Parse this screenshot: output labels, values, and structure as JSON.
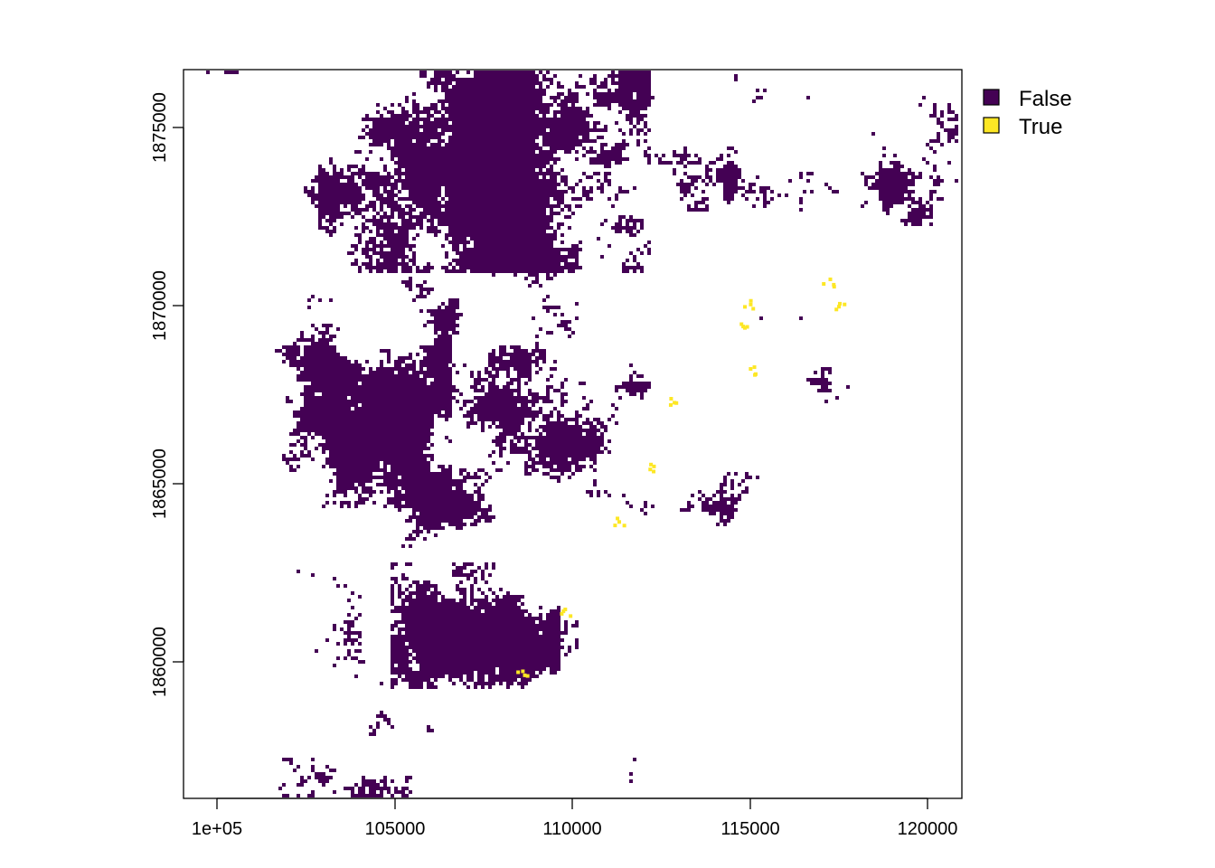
{
  "chart_data": {
    "type": "heatmap",
    "title": "",
    "xlabel": "",
    "ylabel": "",
    "xlim": [
      99050,
      120950
    ],
    "ylim": [
      1856200,
      1876650
    ],
    "x_ticks": [
      100000,
      105000,
      110000,
      115000,
      120000
    ],
    "x_tick_labels": [
      "1e+05",
      "105000",
      "110000",
      "115000",
      "120000"
    ],
    "y_ticks": [
      1860000,
      1865000,
      1870000,
      1875000
    ],
    "y_tick_labels": [
      "1860000",
      "1865000",
      "1870000",
      "1875000"
    ],
    "grid": false,
    "legend_position": "right",
    "legend": [
      {
        "label": "False",
        "color": "#440154"
      },
      {
        "label": "True",
        "color": "#FDE725"
      }
    ],
    "background": "#ffffff"
  }
}
